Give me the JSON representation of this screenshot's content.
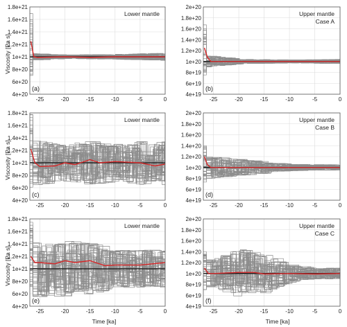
{
  "figure": {
    "ylabel": "Viscosity  [Pa s]",
    "xlabel": "Time [ka]"
  },
  "colors": {
    "ensemble": "#8c8c8c",
    "mean": "#d62728",
    "reference": "#222222",
    "grid": "#dcdcdc"
  },
  "chart_data": [
    {
      "type": "line",
      "letter": "(a)",
      "title_lines": [
        "Lower mantle"
      ],
      "xlim": [
        -27,
        0
      ],
      "ylim": [
        4e+20,
        1.8e+21
      ],
      "xticks": [
        -25,
        -20,
        -15,
        -10,
        -5,
        0
      ],
      "xtick_labels": [
        "-25",
        "-20",
        "-15",
        "-10",
        "-5",
        "0"
      ],
      "yticks": [
        4e+20,
        6e+20,
        8e+20,
        1e+21,
        1.2e+21,
        1.4e+21,
        1.6e+21,
        1.8e+21
      ],
      "ytick_labels": [
        "4e+20",
        "6e+20",
        "8e+20",
        "1e+21",
        "1.2e+21",
        "1.4e+21",
        "1.6e+21",
        "1.8e+21"
      ],
      "reference": 1e+21,
      "ensemble": {
        "members": 40,
        "initial_min": 7e+20,
        "initial_max": 1.7e+21,
        "spread": [
          [
            -26,
            0.05
          ],
          [
            -20,
            0.03
          ],
          [
            -10,
            0.04
          ],
          [
            0,
            0.06
          ]
        ]
      },
      "mean": {
        "x": [
          -26.8,
          -26.2,
          -25.5,
          -20,
          -15,
          -10,
          -5,
          0
        ],
        "y": [
          1.25e+21,
          1e+21,
          9.9e+20,
          1e+21,
          9.9e+20,
          1e+21,
          1e+21,
          1e+21
        ]
      }
    },
    {
      "type": "line",
      "letter": "(b)",
      "title_lines": [
        "Upper mantle",
        "Case A"
      ],
      "xlim": [
        -27,
        0
      ],
      "ylim": [
        4e+19,
        2e+20
      ],
      "xticks": [
        -25,
        -20,
        -15,
        -10,
        -5,
        0
      ],
      "xtick_labels": [
        "-25",
        "-20",
        "-15",
        "-10",
        "-5",
        "0"
      ],
      "yticks": [
        4e+19,
        6e+19,
        8e+19,
        1e+20,
        1.2e+20,
        1.4e+20,
        1.6e+20,
        1.8e+20,
        2e+20
      ],
      "ytick_labels": [
        "4e+19",
        "6e+19",
        "8e+19",
        "1e+20",
        "1.2e+20",
        "1.4e+20",
        "1.6e+20",
        "1.8e+20",
        "2e+20"
      ],
      "reference": 1e+20,
      "ensemble": {
        "members": 40,
        "initial_min": 7e+19,
        "initial_max": 1.7e+20,
        "spread": [
          [
            -26,
            0.1
          ],
          [
            -20,
            0.04
          ],
          [
            -10,
            0.03
          ],
          [
            0,
            0.04
          ]
        ]
      },
      "mean": {
        "x": [
          -26.8,
          -26.2,
          -25.5,
          -20,
          -15,
          -10,
          -5,
          0
        ],
        "y": [
          1.25e+20,
          1.08e+20,
          1e+20,
          1e+20,
          1e+20,
          1e+20,
          1e+20,
          1e+20
        ]
      }
    },
    {
      "type": "line",
      "letter": "(c)",
      "title_lines": [
        "Lower mantle"
      ],
      "xlim": [
        -27,
        0
      ],
      "ylim": [
        4e+20,
        1.8e+21
      ],
      "xticks": [
        -25,
        -20,
        -15,
        -10,
        -5,
        0
      ],
      "xtick_labels": [
        "-25",
        "-20",
        "-15",
        "-10",
        "-5",
        "0"
      ],
      "yticks": [
        4e+20,
        6e+20,
        8e+20,
        1e+21,
        1.2e+21,
        1.4e+21,
        1.6e+21,
        1.8e+21
      ],
      "ytick_labels": [
        "4e+20",
        "6e+20",
        "8e+20",
        "1e+21",
        "1.2e+21",
        "1.4e+21",
        "1.6e+21",
        "1.8e+21"
      ],
      "reference": 1e+21,
      "ensemble": {
        "members": 40,
        "initial_min": 6e+20,
        "initial_max": 1.8e+21,
        "spread": [
          [
            -26,
            0.35
          ],
          [
            -20,
            0.3
          ],
          [
            -15,
            0.35
          ],
          [
            -10,
            0.3
          ],
          [
            -5,
            0.35
          ],
          [
            0,
            0.35
          ]
        ]
      },
      "mean": {
        "x": [
          -26.8,
          -26,
          -25,
          -22,
          -20,
          -18,
          -15,
          -13,
          -10,
          -5,
          -2,
          0
        ],
        "y": [
          1.22e+21,
          1e+21,
          9.4e+20,
          9.5e+20,
          1e+21,
          9.7e+20,
          1.05e+21,
          1e+21,
          1.02e+21,
          1e+21,
          9.5e+20,
          9.8e+20
        ]
      }
    },
    {
      "type": "line",
      "letter": "(d)",
      "title_lines": [
        "Upper mantle",
        "Case B"
      ],
      "xlim": [
        -27,
        0
      ],
      "ylim": [
        4e+19,
        2e+20
      ],
      "xticks": [
        -25,
        -20,
        -15,
        -10,
        -5,
        0
      ],
      "xtick_labels": [
        "-25",
        "-20",
        "-15",
        "-10",
        "-5",
        "0"
      ],
      "yticks": [
        4e+19,
        6e+19,
        8e+19,
        1e+20,
        1.2e+20,
        1.4e+20,
        1.6e+20,
        1.8e+20,
        2e+20
      ],
      "ytick_labels": [
        "4e+19",
        "6e+19",
        "8e+19",
        "1e+20",
        "1.2e+20",
        "1.4e+20",
        "1.6e+20",
        "1.8e+20",
        "2e+20"
      ],
      "reference": 1e+20,
      "ensemble": {
        "members": 40,
        "initial_min": 7e+19,
        "initial_max": 1.4e+20,
        "spread": [
          [
            -26,
            0.2
          ],
          [
            -20,
            0.15
          ],
          [
            -15,
            0.1
          ],
          [
            -10,
            0.06
          ],
          [
            0,
            0.05
          ]
        ]
      },
      "mean": {
        "x": [
          -26.8,
          -26.2,
          -25.5,
          -20,
          -15,
          -10,
          -5,
          0
        ],
        "y": [
          1.2e+20,
          1.05e+20,
          1e+20,
          1e+20,
          1e+20,
          1e+20,
          1e+20,
          1e+20
        ]
      }
    },
    {
      "type": "line",
      "letter": "(e)",
      "title_lines": [
        "Lower mantle"
      ],
      "xlim": [
        -27,
        0
      ],
      "ylim": [
        4e+20,
        1.8e+21
      ],
      "xticks": [
        -25,
        -20,
        -15,
        -10,
        -5,
        0
      ],
      "xtick_labels": [
        "-25",
        "-20",
        "-15",
        "-10",
        "-5",
        "0"
      ],
      "yticks": [
        4e+20,
        6e+20,
        8e+20,
        1e+21,
        1.2e+21,
        1.4e+21,
        1.6e+21,
        1.8e+21
      ],
      "ytick_labels": [
        "4e+20",
        "6e+20",
        "8e+20",
        "1e+21",
        "1.2e+21",
        "1.4e+21",
        "1.6e+21",
        "1.8e+21"
      ],
      "reference": 1e+21,
      "ensemble": {
        "members": 40,
        "initial_min": 7e+20,
        "initial_max": 1.75e+21,
        "spread": [
          [
            -26,
            0.45
          ],
          [
            -20,
            0.45
          ],
          [
            -15,
            0.4
          ],
          [
            -10,
            0.3
          ],
          [
            -5,
            0.3
          ],
          [
            0,
            0.3
          ]
        ]
      },
      "mean": {
        "x": [
          -26.8,
          -26,
          -25,
          -22,
          -20,
          -18,
          -15,
          -12,
          -10,
          -5,
          0
        ],
        "y": [
          1.2e+21,
          1.1e+21,
          1.1e+21,
          1.08e+21,
          1.13e+21,
          1.1e+21,
          1.13e+21,
          1.05e+21,
          1.06e+21,
          1.06e+21,
          1.1e+21
        ]
      }
    },
    {
      "type": "line",
      "letter": "(f)",
      "title_lines": [
        "Upper mantle",
        "Case C"
      ],
      "xlim": [
        -27,
        0
      ],
      "ylim": [
        4e+19,
        2e+20
      ],
      "xticks": [
        -25,
        -20,
        -15,
        -10,
        -5,
        0
      ],
      "xtick_labels": [
        "-25",
        "-20",
        "-15",
        "-10",
        "-5",
        "0"
      ],
      "yticks": [
        4e+19,
        6e+19,
        8e+19,
        1e+20,
        1.2e+20,
        1.4e+20,
        1.6e+20,
        1.8e+20,
        2e+20
      ],
      "ytick_labels": [
        "4e+19",
        "6e+19",
        "8e+19",
        "1e+20",
        "1.2e+20",
        "1.4e+20",
        "1.6e+20",
        "1.8e+20",
        "2e+20"
      ],
      "reference": 1e+20,
      "ensemble": {
        "members": 40,
        "initial_min": 7e+19,
        "initial_max": 1.4e+20,
        "spread": [
          [
            -26,
            0.25
          ],
          [
            -20,
            0.45
          ],
          [
            -15,
            0.35
          ],
          [
            -10,
            0.15
          ],
          [
            -5,
            0.1
          ],
          [
            0,
            0.1
          ]
        ]
      },
      "mean": {
        "x": [
          -26.8,
          -26,
          -25,
          -20,
          -17,
          -15,
          -10,
          -5,
          0
        ],
        "y": [
          1.1e+20,
          1e+20,
          1e+20,
          1.02e+20,
          1.02e+20,
          9.9e+19,
          1e+20,
          9.9e+19,
          1e+20
        ]
      }
    }
  ]
}
